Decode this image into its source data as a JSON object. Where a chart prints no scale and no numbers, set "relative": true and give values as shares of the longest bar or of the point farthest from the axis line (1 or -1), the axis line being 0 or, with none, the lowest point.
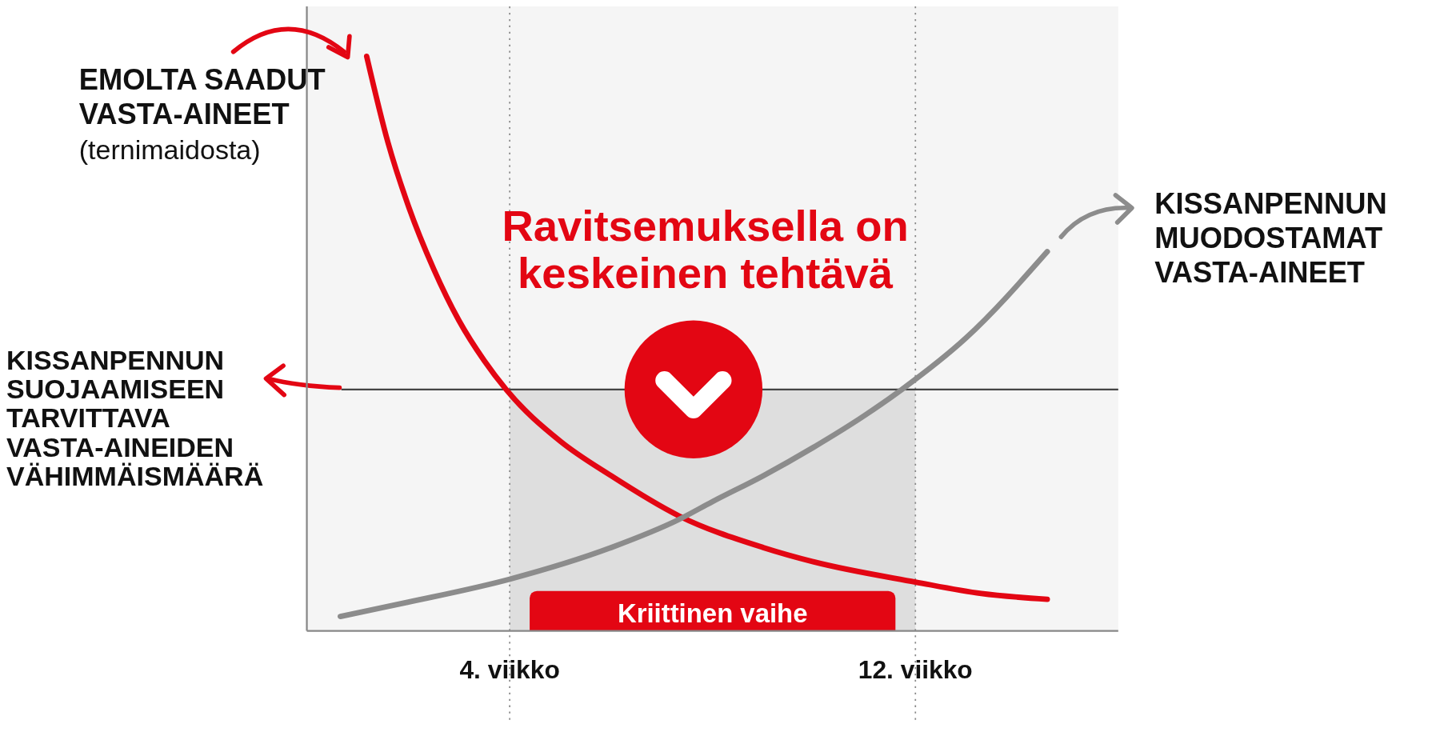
{
  "chart_data": {
    "type": "line",
    "relative": true,
    "title": "Ravitsemuksella on keskeinen tehtävä",
    "xlim": [
      0,
      16
    ],
    "xticks": [
      {
        "value": 4,
        "label": "4. viikko"
      },
      {
        "value": 12,
        "label": "12. viikko"
      }
    ],
    "grid": "x",
    "marker": "none",
    "line_style": "solid",
    "series": [
      {
        "name": "EMOLTA SAADUT VASTA-AINEET",
        "color": "#e30613",
        "x": [
          1.18,
          1.6,
          2,
          2.5,
          3,
          3.5,
          3.93,
          5,
          6,
          7.34,
          9,
          10,
          12,
          13.3,
          14.6
        ],
        "values": [
          1,
          0.85,
          0.74,
          0.63,
          0.54,
          0.47,
          0.42,
          0.33,
          0.27,
          0.2,
          0.145,
          0.12,
          0.085,
          0.065,
          0.055
        ]
      },
      {
        "name": "KISSANPENNUN MUODOSTAMAT VASTA-AINEET",
        "color": "#8c8c8c",
        "x": [
          0.66,
          2,
          4,
          6,
          7.34,
          8,
          9,
          10,
          11,
          11.73,
          13,
          14.6
        ],
        "values": [
          0.025,
          0.05,
          0.09,
          0.145,
          0.194,
          0.225,
          0.27,
          0.32,
          0.375,
          0.42,
          0.51,
          0.66
        ]
      }
    ],
    "ref_lines": [
      {
        "axis": "y",
        "value": 0.42,
        "label": "KISSANPENNUN SUOJAAMISEEN TARVITTAVA VASTA-AINEIDEN VÄHIMMÄISMÄÄRÄ"
      }
    ],
    "bands": [
      {
        "axis": "x",
        "from": 4,
        "to": 12,
        "label": "Kriittinen vaihe",
        "color": "#dedede"
      }
    ],
    "annotations": [
      "(ternimaidosta)"
    ]
  }
}
